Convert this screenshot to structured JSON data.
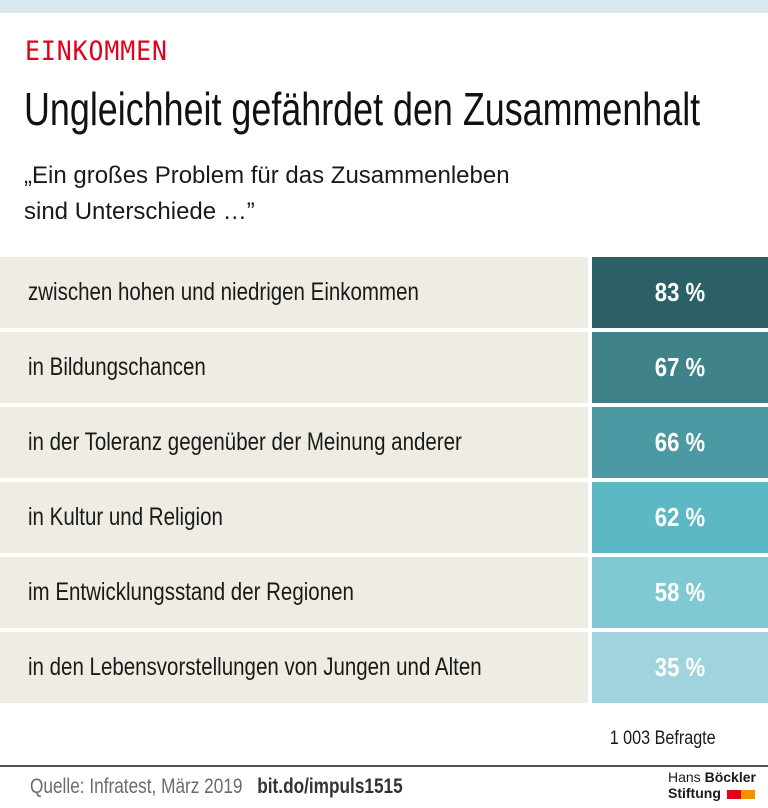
{
  "header": {
    "kicker": "EINKOMMEN",
    "title": "Ungleichheit gefährdet den Zusammenhalt",
    "subtitle_line1": "„Ein großes Problem für das Zusammenleben",
    "subtitle_line2": "sind Unterschiede …”"
  },
  "chart_data": {
    "type": "table",
    "title": "Ungleichheit gefährdet den Zusammenhalt",
    "subtitle": "„Ein großes Problem für das Zusammenleben sind Unterschiede …”",
    "unit": "%",
    "categories": [
      "zwischen hohen und niedrigen Einkommen",
      "in Bildungschancen",
      "in der Toleranz gegenüber der Meinung anderer",
      "in Kultur und Religion",
      "im Entwicklungsstand der Regionen",
      "in den Lebensvorstellungen von Jungen und Alten"
    ],
    "values": [
      83,
      67,
      66,
      62,
      58,
      35
    ],
    "value_labels": [
      "83 %",
      "67 %",
      "66 %",
      "62 %",
      "58 %",
      "35 %"
    ],
    "colors": [
      "#2a6066",
      "#3f8289",
      "#4b9aa3",
      "#5db8c6",
      "#80c8d2",
      "#9fd4de"
    ],
    "note": "1 003 Befragte"
  },
  "footer": {
    "sample": "1 003 Befragte",
    "source": "Quelle: Infratest, März 2019",
    "link": "bit.do/impuls1515",
    "logo_line1_light": "Hans ",
    "logo_line1_bold": "Böckler",
    "logo_line2": "Stiftung",
    "logo_colors": [
      "#e2001a",
      "#f39200"
    ]
  }
}
